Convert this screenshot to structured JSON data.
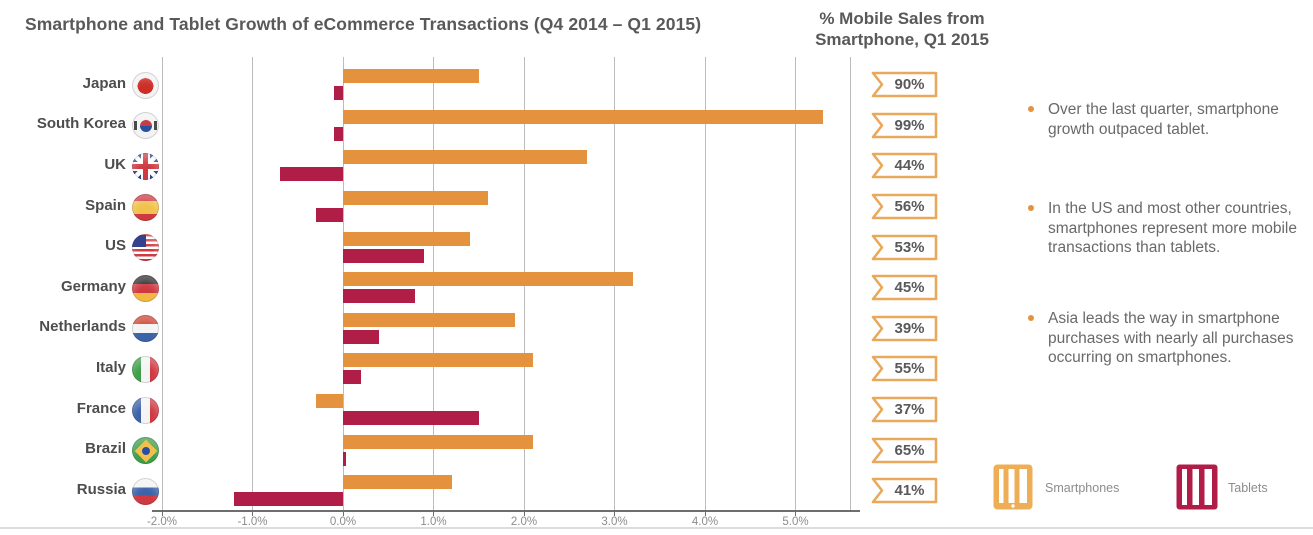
{
  "title": "Smartphone and Tablet Growth of eCommerce Transactions (Q4 2014 – Q1 2015)",
  "right_header": "% Mobile Sales from Smartphone, Q1 2015",
  "chart_data": {
    "type": "bar",
    "orientation": "horizontal",
    "title": "Smartphone and Tablet Growth of eCommerce Transactions (Q4 2014 – Q1 2015)",
    "x_axis_unit": "%",
    "xlim": [
      -2.1,
      5.7
    ],
    "grid": true,
    "ticks": [
      -2,
      -1,
      0,
      1,
      2,
      3,
      4,
      5
    ],
    "tick_labels": [
      "-2.0%",
      "-1.0%",
      "0.0%",
      "1.0%",
      "2.0%",
      "3.0%",
      "4.0%",
      "5.0%"
    ],
    "categories": [
      "Japan",
      "South Korea",
      "UK",
      "Spain",
      "US",
      "Germany",
      "Netherlands",
      "Italy",
      "France",
      "Brazil",
      "Russia"
    ],
    "flags": [
      "japan",
      "south-korea",
      "uk",
      "spain",
      "us",
      "germany",
      "netherlands",
      "italy",
      "france",
      "brazil",
      "russia"
    ],
    "series": [
      {
        "name": "Smartphones",
        "color": "#E5923E",
        "values": [
          1.5,
          5.3,
          2.7,
          1.6,
          1.4,
          3.2,
          1.9,
          2.1,
          -0.3,
          2.1,
          1.2
        ]
      },
      {
        "name": "Tablets",
        "color": "#B01E48",
        "values": [
          -0.1,
          -0.1,
          -0.7,
          -0.3,
          0.9,
          0.8,
          0.4,
          0.2,
          1.5,
          0.03,
          -1.2
        ]
      }
    ],
    "smartphone_share_label": "% Mobile Sales from Smartphone, Q1 2015",
    "smartphone_share": [
      "90%",
      "99%",
      "44%",
      "56%",
      "53%",
      "45%",
      "39%",
      "55%",
      "37%",
      "65%",
      "41%"
    ],
    "legend_position": "bottom-right"
  },
  "bullets": [
    "Over the last quarter, smartphone growth outpaced tablet.",
    "In the US and most other countries, smartphones represent more mobile transactions than tablets.",
    "Asia leads the way in smartphone purchases with nearly all purchases occurring on smartphones."
  ],
  "legend": [
    {
      "label": "Smartphones",
      "color": "#E5923E",
      "icon": "smartphone-icon"
    },
    {
      "label": "Tablets",
      "color": "#B01E48",
      "icon": "tablet-icon"
    }
  ],
  "colors": {
    "smartphone_bar": "#E5923E",
    "tablet_bar": "#B01E48",
    "badge_border": "#E9A95D",
    "title_text": "#595959",
    "gridline": "#bcbcbc",
    "axis_text": "#8c8c8c"
  }
}
